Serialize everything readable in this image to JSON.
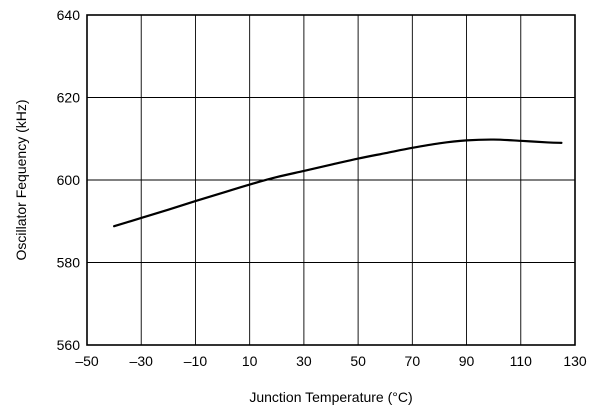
{
  "chart_data": {
    "type": "line",
    "title": "",
    "xlabel": "Junction Temperature (°C)",
    "ylabel": "Oscillator Fequency (kHz)",
    "xlim": [
      -50,
      130
    ],
    "ylim": [
      560,
      640
    ],
    "xticks": [
      -50,
      -30,
      -10,
      10,
      30,
      50,
      70,
      90,
      110,
      130
    ],
    "yticks": [
      560,
      580,
      600,
      620,
      640
    ],
    "xtick_labels": [
      "–50",
      "–30",
      "–10",
      "10",
      "30",
      "50",
      "70",
      "90",
      "110",
      "130"
    ],
    "ytick_labels": [
      "560",
      "580",
      "600",
      "620",
      "640"
    ],
    "grid": true,
    "series": [
      {
        "x": [
          -40,
          -30,
          -20,
          -10,
          0,
          10,
          20,
          30,
          40,
          50,
          60,
          70,
          80,
          90,
          100,
          110,
          120,
          125
        ],
        "y": [
          588.8,
          590.8,
          592.8,
          594.9,
          596.9,
          598.9,
          600.7,
          602.2,
          603.7,
          605.2,
          606.5,
          607.8,
          608.9,
          609.6,
          609.8,
          609.5,
          609.1,
          609.0
        ]
      }
    ],
    "line_color": "#000000"
  }
}
